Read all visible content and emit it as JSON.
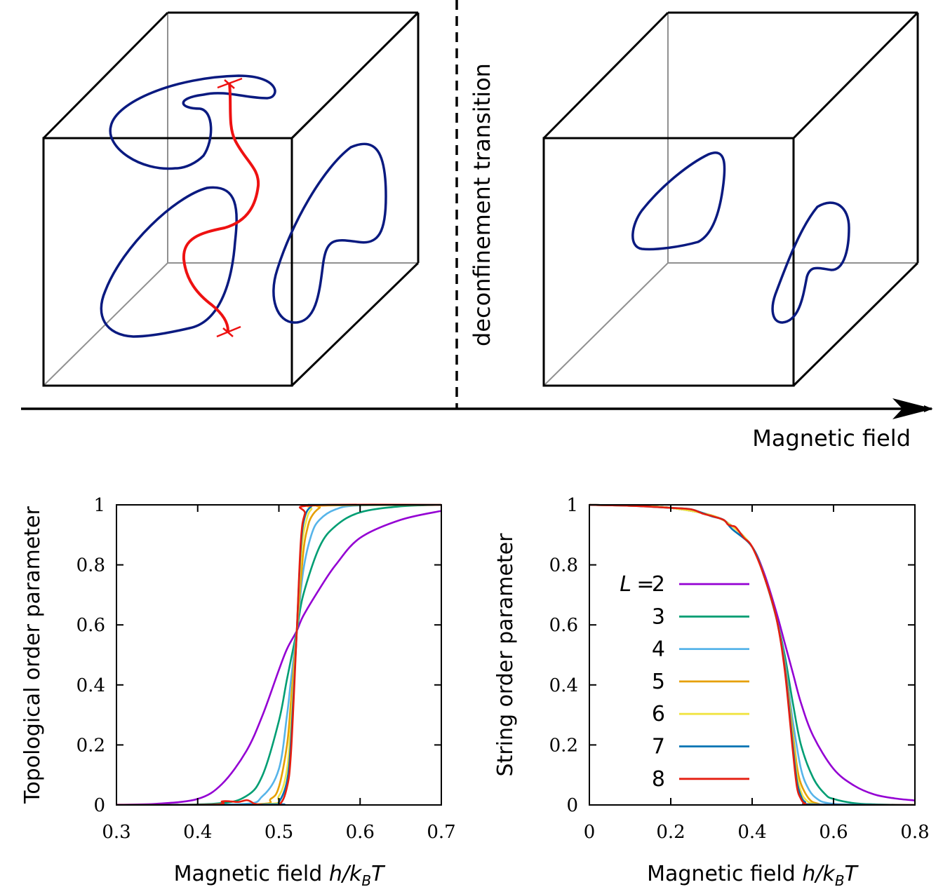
{
  "schematic": {
    "transition_label": "deconfinement transition",
    "arrow_label": "Magnetic field",
    "colors": {
      "loop": "#0a1a80",
      "string": "#ee1111",
      "box": "#000000",
      "hidden_edge": "#909090"
    }
  },
  "chart_data": [
    {
      "type": "line",
      "xlabel": "Magnetic field h/k_B T",
      "ylabel": "Topological order parameter",
      "xlim": [
        0.3,
        0.7
      ],
      "ylim": [
        0,
        1
      ],
      "xticks": [
        "0.3",
        "0.4",
        "0.5",
        "0.6",
        "0.7"
      ],
      "yticks": [
        "0",
        "0.2",
        "0.4",
        "0.6",
        "0.8",
        "1"
      ],
      "crossing_point": {
        "x": 0.522,
        "y": 0.58
      },
      "series": [
        {
          "name": "2",
          "color": "#9400d3",
          "x": [
            0.3,
            0.35,
            0.4,
            0.43,
            0.46,
            0.48,
            0.5,
            0.51,
            0.522,
            0.53,
            0.55,
            0.57,
            0.6,
            0.65,
            0.7
          ],
          "values": [
            0.001,
            0.004,
            0.02,
            0.07,
            0.18,
            0.3,
            0.45,
            0.52,
            0.58,
            0.63,
            0.72,
            0.8,
            0.89,
            0.95,
            0.98
          ]
        },
        {
          "name": "3",
          "color": "#009e73",
          "x": [
            0.3,
            0.42,
            0.46,
            0.48,
            0.5,
            0.51,
            0.522,
            0.53,
            0.55,
            0.57,
            0.6,
            0.65,
            0.7
          ],
          "values": [
            0,
            0.004,
            0.03,
            0.1,
            0.28,
            0.42,
            0.58,
            0.7,
            0.86,
            0.93,
            0.975,
            0.995,
            1.0
          ]
        },
        {
          "name": "4",
          "color": "#56b4e9",
          "x": [
            0.3,
            0.45,
            0.48,
            0.5,
            0.51,
            0.515,
            0.522,
            0.53,
            0.54,
            0.55,
            0.57,
            0.6,
            0.7
          ],
          "values": [
            0,
            0.002,
            0.03,
            0.12,
            0.3,
            0.42,
            0.58,
            0.78,
            0.9,
            0.95,
            0.985,
            0.998,
            1.0
          ]
        },
        {
          "name": "5",
          "color": "#e69f00",
          "x": [
            0.3,
            0.47,
            0.49,
            0.5,
            0.51,
            0.515,
            0.522,
            0.53,
            0.535,
            0.54,
            0.55,
            0.56,
            0.7
          ],
          "values": [
            0,
            0.002,
            0.02,
            0.06,
            0.2,
            0.35,
            0.58,
            0.84,
            0.92,
            0.96,
            0.99,
            0.998,
            1.0
          ]
        },
        {
          "name": "6",
          "color": "#f0e442",
          "x": [
            0.3,
            0.48,
            0.5,
            0.51,
            0.515,
            0.522,
            0.528,
            0.534,
            0.54,
            0.55,
            0.7
          ],
          "values": [
            0,
            0.002,
            0.03,
            0.12,
            0.28,
            0.58,
            0.85,
            0.95,
            0.985,
            0.998,
            1.0
          ]
        },
        {
          "name": "7",
          "color": "#0072b2",
          "x": [
            0.3,
            0.49,
            0.5,
            0.51,
            0.515,
            0.522,
            0.527,
            0.532,
            0.54,
            0.55,
            0.7
          ],
          "values": [
            0,
            0.002,
            0.01,
            0.08,
            0.22,
            0.58,
            0.86,
            0.96,
            0.995,
            1.0,
            1.0
          ]
        },
        {
          "name": "8",
          "color": "#e51e10",
          "x": [
            0.3,
            0.42,
            0.43,
            0.44,
            0.45,
            0.46,
            0.465,
            0.47,
            0.48,
            0.5,
            0.51,
            0.515,
            0.522,
            0.527,
            0.532,
            0.54,
            0.7
          ],
          "values": [
            0,
            0.001,
            0.012,
            0.012,
            0.01,
            0.016,
            0.012,
            0.004,
            0.0,
            0.0,
            0.06,
            0.18,
            0.58,
            0.88,
            0.97,
            0.998,
            1.0
          ]
        }
      ]
    },
    {
      "type": "line",
      "xlabel": "Magnetic field h/k_B T",
      "ylabel": "String order parameter",
      "xlim": [
        0,
        0.8
      ],
      "ylim": [
        0,
        1
      ],
      "xticks": [
        "0",
        "0.2",
        "0.4",
        "0.6",
        "0.8"
      ],
      "yticks": [
        "0",
        "0.2",
        "0.4",
        "0.6",
        "0.8",
        "1"
      ],
      "legend": {
        "title": "L =",
        "position": "center-left"
      },
      "series": [
        {
          "name": "2",
          "color": "#9400d3",
          "x": [
            0,
            0.1,
            0.2,
            0.3,
            0.35,
            0.4,
            0.43,
            0.46,
            0.48,
            0.5,
            0.52,
            0.55,
            0.6,
            0.65,
            0.7,
            0.75,
            0.8
          ],
          "values": [
            1.0,
            0.997,
            0.99,
            0.965,
            0.93,
            0.86,
            0.77,
            0.64,
            0.54,
            0.44,
            0.34,
            0.23,
            0.12,
            0.065,
            0.035,
            0.022,
            0.015
          ]
        },
        {
          "name": "3",
          "color": "#009e73",
          "x": [
            0,
            0.1,
            0.2,
            0.3,
            0.35,
            0.4,
            0.43,
            0.46,
            0.48,
            0.5,
            0.52,
            0.55,
            0.58,
            0.6,
            0.65,
            0.7,
            0.8
          ],
          "values": [
            1.0,
            0.997,
            0.99,
            0.965,
            0.93,
            0.86,
            0.76,
            0.62,
            0.5,
            0.34,
            0.2,
            0.09,
            0.035,
            0.02,
            0.006,
            0.002,
            0
          ]
        },
        {
          "name": "4",
          "color": "#56b4e9",
          "x": [
            0,
            0.1,
            0.2,
            0.3,
            0.35,
            0.4,
            0.43,
            0.46,
            0.48,
            0.5,
            0.52,
            0.54,
            0.56,
            0.58,
            0.62,
            0.7,
            0.8
          ],
          "values": [
            1.0,
            0.997,
            0.99,
            0.965,
            0.93,
            0.86,
            0.76,
            0.62,
            0.48,
            0.28,
            0.12,
            0.05,
            0.02,
            0.008,
            0.002,
            0,
            0
          ]
        },
        {
          "name": "5",
          "color": "#e69f00",
          "x": [
            0,
            0.1,
            0.2,
            0.3,
            0.35,
            0.4,
            0.43,
            0.46,
            0.48,
            0.5,
            0.51,
            0.52,
            0.54,
            0.56,
            0.6,
            0.8
          ],
          "values": [
            1.0,
            0.997,
            0.99,
            0.965,
            0.93,
            0.86,
            0.76,
            0.62,
            0.47,
            0.24,
            0.13,
            0.07,
            0.02,
            0.005,
            0,
            0
          ]
        },
        {
          "name": "6",
          "color": "#f0e442",
          "x": [
            0,
            0.1,
            0.2,
            0.3,
            0.35,
            0.4,
            0.43,
            0.46,
            0.48,
            0.5,
            0.51,
            0.52,
            0.53,
            0.55,
            0.6,
            0.8
          ],
          "values": [
            1.0,
            0.997,
            0.99,
            0.965,
            0.93,
            0.86,
            0.76,
            0.62,
            0.46,
            0.22,
            0.1,
            0.045,
            0.02,
            0.004,
            0,
            0
          ]
        },
        {
          "name": "7",
          "color": "#0072b2",
          "x": [
            0,
            0.1,
            0.2,
            0.25,
            0.3,
            0.33,
            0.35,
            0.4,
            0.43,
            0.46,
            0.48,
            0.5,
            0.51,
            0.52,
            0.53,
            0.55,
            0.8
          ],
          "values": [
            1.0,
            0.997,
            0.99,
            0.985,
            0.962,
            0.95,
            0.92,
            0.86,
            0.76,
            0.62,
            0.46,
            0.2,
            0.08,
            0.03,
            0.01,
            0.002,
            0
          ]
        },
        {
          "name": "8",
          "color": "#e51e10",
          "x": [
            0,
            0.1,
            0.2,
            0.25,
            0.28,
            0.3,
            0.33,
            0.34,
            0.35,
            0.36,
            0.38,
            0.4,
            0.43,
            0.46,
            0.48,
            0.5,
            0.51,
            0.52,
            0.53,
            0.55,
            0.8
          ],
          "values": [
            1.0,
            0.997,
            0.99,
            0.985,
            0.97,
            0.963,
            0.95,
            0.935,
            0.93,
            0.925,
            0.89,
            0.86,
            0.76,
            0.62,
            0.45,
            0.18,
            0.06,
            0.02,
            0.005,
            0,
            0
          ]
        }
      ]
    }
  ]
}
